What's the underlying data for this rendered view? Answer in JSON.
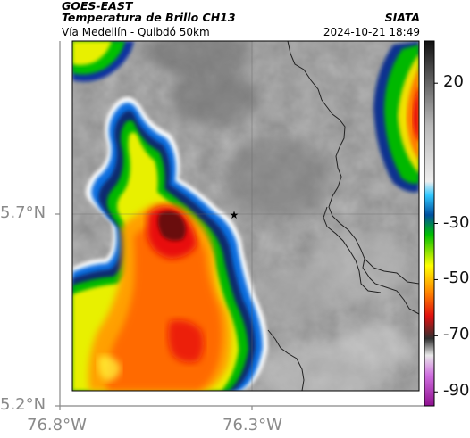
{
  "header": {
    "satellite": "GOES-EAST",
    "product": "Temperatura de Brillo CH13",
    "region": "Vía Medellín - Quibdó 50km",
    "organization": "SIATA",
    "datetime": "2024-10-21 18:49"
  },
  "map": {
    "lat_labels": [
      "5.7°N",
      "5.2°N"
    ],
    "lon_labels": [
      "76.8°W",
      "76.3°W"
    ],
    "marker": "star-marker",
    "basemap": "grayscale brightness temperature with colored convective cloud tops"
  },
  "colorbar": {
    "tick_labels": [
      "20",
      "-30",
      "-50",
      "-70",
      "-90"
    ],
    "tick_values": [
      20,
      -30,
      -50,
      -70,
      -90
    ],
    "range": [
      -95,
      35
    ],
    "stops": [
      {
        "value": 35,
        "color": "#111111"
      },
      {
        "value": 5,
        "color": "#b8b8b8"
      },
      {
        "value": -15,
        "color": "#eeeeee"
      },
      {
        "value": -20,
        "color": "#30c8ff"
      },
      {
        "value": -27,
        "color": "#0050a0"
      },
      {
        "value": -34,
        "color": "#00c000"
      },
      {
        "value": -45,
        "color": "#ffff00"
      },
      {
        "value": -55,
        "color": "#ff8000"
      },
      {
        "value": -63,
        "color": "#e01010"
      },
      {
        "value": -71,
        "color": "#303030"
      },
      {
        "value": -77,
        "color": "#e8e8e8"
      },
      {
        "value": -84,
        "color": "#d070e0"
      },
      {
        "value": -95,
        "color": "#901090"
      }
    ]
  }
}
